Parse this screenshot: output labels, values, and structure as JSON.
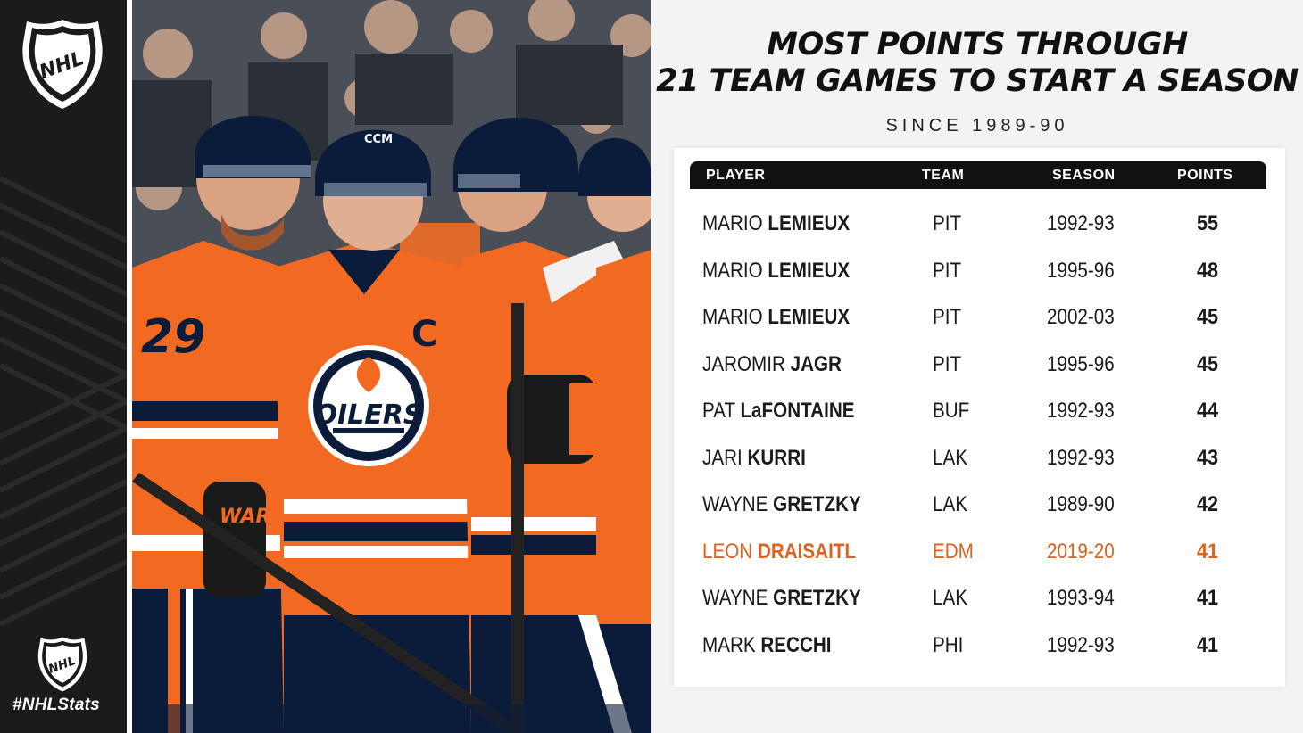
{
  "brand": {
    "hashtag": "#NHLStats",
    "logo_text": "NHL",
    "logo_icon": "nhl-shield-icon"
  },
  "colors": {
    "highlight": "#e0621e",
    "header_bg": "#111111",
    "oilers_orange": "#f26a21",
    "oilers_navy": "#0b1c3a"
  },
  "title": {
    "line1": "MOST POINTS THROUGH",
    "line2": "21 TEAM GAMES TO START A SEASON"
  },
  "subtitle": "SINCE 1989-90",
  "table": {
    "headers": {
      "player": "PLAYER",
      "team": "TEAM",
      "season": "SEASON",
      "points": "POINTS"
    },
    "rows": [
      {
        "first": "MARIO",
        "last": "LEMIEUX",
        "team": "PIT",
        "season": "1992-93",
        "points": "55"
      },
      {
        "first": "MARIO",
        "last": "LEMIEUX",
        "team": "PIT",
        "season": "1995-96",
        "points": "48"
      },
      {
        "first": "MARIO",
        "last": "LEMIEUX",
        "team": "PIT",
        "season": "2002-03",
        "points": "45"
      },
      {
        "first": "JAROMIR",
        "last": "JAGR",
        "team": "PIT",
        "season": "1995-96",
        "points": "45"
      },
      {
        "first": "PAT",
        "last": "LaFONTAINE",
        "team": "BUF",
        "season": "1992-93",
        "points": "44"
      },
      {
        "first": "JARI",
        "last": "KURRI",
        "team": "LAK",
        "season": "1992-93",
        "points": "43"
      },
      {
        "first": "WAYNE",
        "last": "GRETZKY",
        "team": "LAK",
        "season": "1989-90",
        "points": "42"
      },
      {
        "first": "LEON",
        "last": "DRAISAITL",
        "team": "EDM",
        "season": "2019-20",
        "points": "41",
        "highlight": true
      },
      {
        "first": "WAYNE",
        "last": "GRETZKY",
        "team": "LAK",
        "season": "1993-94",
        "points": "41"
      },
      {
        "first": "MARK",
        "last": "RECCHI",
        "team": "PHI",
        "season": "1992-93",
        "points": "41"
      }
    ]
  },
  "photo": {
    "jersey_number": "29",
    "captain_letter": "C",
    "crest_text": "OILERS",
    "glove_text": "WARR",
    "helmet_brand": "CCM"
  }
}
